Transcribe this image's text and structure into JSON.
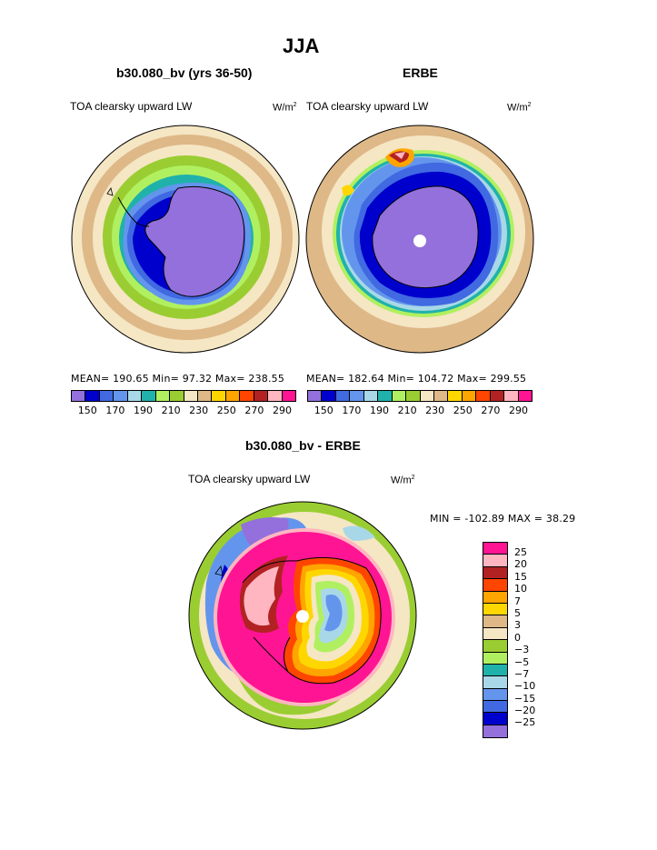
{
  "page": {
    "title": "JJA"
  },
  "panel_left": {
    "subtitle": "b30.080_bv (yrs 36-50)",
    "field_label": "TOA clearsky upward LW",
    "units_base": "W/m",
    "units_exp": "2",
    "stats": "MEAN= 190.65   Min= 97.32   Max= 238.55"
  },
  "panel_right": {
    "subtitle": "ERBE",
    "field_label": "TOA clearsky upward LW",
    "units_base": "W/m",
    "units_exp": "2",
    "stats": "MEAN= 182.64   Min= 104.72   Max= 299.55"
  },
  "panel_diff": {
    "subtitle": "b30.080_bv - ERBE",
    "field_label": "TOA clearsky upward LW",
    "units_base": "W/m",
    "units_exp": "2",
    "stats": "MIN = -102.89  MAX =  38.29"
  },
  "colorbar_top": {
    "colors": [
      "#9370db",
      "#0000cd",
      "#4169e1",
      "#6495ed",
      "#a8d8e8",
      "#20b2aa",
      "#b0f060",
      "#9acd32",
      "#f5e6c4",
      "#deb887",
      "#ffd700",
      "#ffa500",
      "#ff4500",
      "#b22222",
      "#ffb6c1",
      "#ff1493"
    ],
    "labels": [
      "150",
      "170",
      "190",
      "210",
      "230",
      "250",
      "270",
      "290"
    ]
  },
  "colorbar_diff": {
    "colors": [
      "#ff1493",
      "#ffb6c1",
      "#b22222",
      "#ff4500",
      "#ffa500",
      "#ffd700",
      "#deb887",
      "#f5e6c4",
      "#9acd32",
      "#b0f060",
      "#20b2aa",
      "#a8d8e8",
      "#6495ed",
      "#4169e1",
      "#0000cd",
      "#9370db"
    ],
    "labels": [
      "25",
      "20",
      "15",
      "10",
      "7",
      "5",
      "3",
      "0",
      "−3",
      "−5",
      "−7",
      "−10",
      "−15",
      "−20",
      "−25"
    ]
  }
}
